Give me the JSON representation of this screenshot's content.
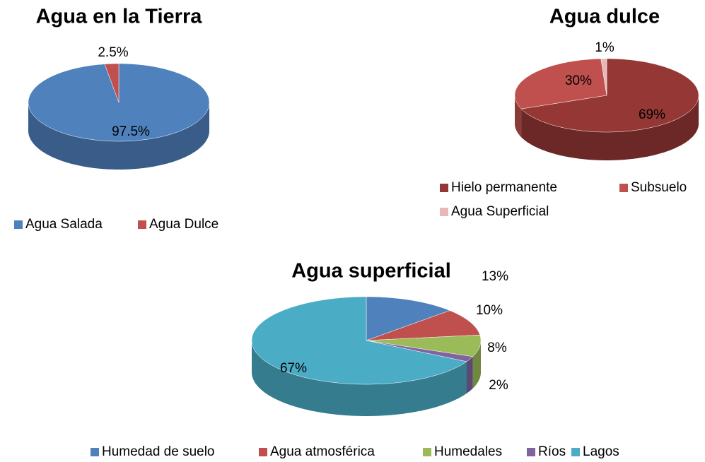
{
  "chart_data": [
    {
      "type": "pie",
      "title": "Agua en la Tierra",
      "categories": [
        "Agua Salada",
        "Agua Dulce"
      ],
      "values": [
        97.5,
        2.5
      ],
      "value_labels": [
        "97.5%",
        "2.5%"
      ],
      "colors": [
        "#4f81bd",
        "#c0504d"
      ]
    },
    {
      "type": "pie",
      "title": "Agua dulce",
      "categories": [
        "Hielo permanente",
        "Subsuelo",
        "Agua Superficial"
      ],
      "values": [
        69,
        30,
        1
      ],
      "value_labels": [
        "69%",
        "30%",
        "1%"
      ],
      "colors": [
        "#953735",
        "#c0504d",
        "#e6b9b8"
      ]
    },
    {
      "type": "pie",
      "title": "Agua superficial",
      "categories": [
        "Humedad de suelo",
        "Agua atmosférica",
        "Humedales",
        "Ríos",
        "Lagos"
      ],
      "values": [
        13,
        10,
        8,
        2,
        67
      ],
      "value_labels": [
        "13%",
        "10%",
        "8%",
        "2%",
        "67%"
      ],
      "colors": [
        "#4f81bd",
        "#c0504d",
        "#9bbb59",
        "#8064a2",
        "#4bacc6"
      ]
    }
  ]
}
